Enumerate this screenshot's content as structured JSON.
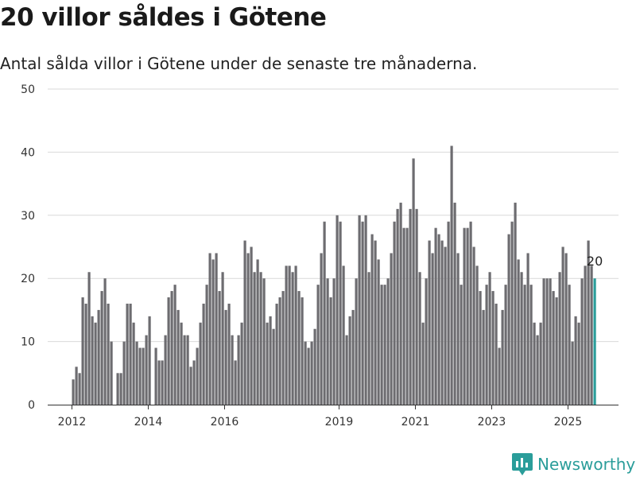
{
  "title": "20 villor såldes i Götene",
  "subtitle": "Antal sålda villor i Götene under de senaste tre månaderna.",
  "brand": {
    "name": "Newsworthy",
    "color": "#2a9d9a"
  },
  "colors": {
    "bar": "#6d6c70",
    "highlight": "#2a9d9a",
    "grid": "#d9d9d9"
  },
  "chart_data": {
    "type": "bar",
    "ylim": [
      0,
      50
    ],
    "yticks": [
      0,
      10,
      20,
      30,
      40,
      50
    ],
    "xtick_labels": [
      "2012",
      "2014",
      "2016",
      "2019",
      "2021",
      "2023",
      "2025"
    ],
    "grid": true,
    "start_month": "2012-01",
    "values": [
      4,
      6,
      5,
      17,
      16,
      21,
      14,
      13,
      15,
      18,
      20,
      16,
      10,
      0,
      5,
      5,
      10,
      16,
      16,
      13,
      10,
      9,
      9,
      11,
      14,
      0,
      9,
      7,
      7,
      11,
      17,
      18,
      19,
      15,
      13,
      11,
      11,
      6,
      7,
      9,
      13,
      16,
      19,
      24,
      23,
      24,
      18,
      21,
      15,
      16,
      11,
      7,
      11,
      13,
      26,
      24,
      25,
      21,
      23,
      21,
      20,
      13,
      14,
      12,
      16,
      17,
      18,
      22,
      22,
      21,
      22,
      18,
      17,
      10,
      9,
      10,
      12,
      19,
      24,
      29,
      20,
      17,
      20,
      30,
      29,
      22,
      11,
      14,
      15,
      20,
      30,
      29,
      30,
      21,
      27,
      26,
      23,
      19,
      19,
      20,
      24,
      29,
      31,
      32,
      28,
      28,
      31,
      39,
      31,
      21,
      13,
      20,
      26,
      24,
      28,
      27,
      26,
      25,
      29,
      41,
      32,
      24,
      19,
      28,
      28,
      29,
      25,
      22,
      18,
      15,
      19,
      21,
      18,
      16,
      9,
      15,
      19,
      27,
      29,
      32,
      23,
      21,
      19,
      24,
      19,
      13,
      11,
      13,
      20,
      20,
      20,
      18,
      17,
      21,
      25,
      24,
      19,
      10,
      14,
      13,
      20,
      22,
      26,
      22,
      20
    ],
    "highlight_last": true,
    "last_label": "20"
  }
}
